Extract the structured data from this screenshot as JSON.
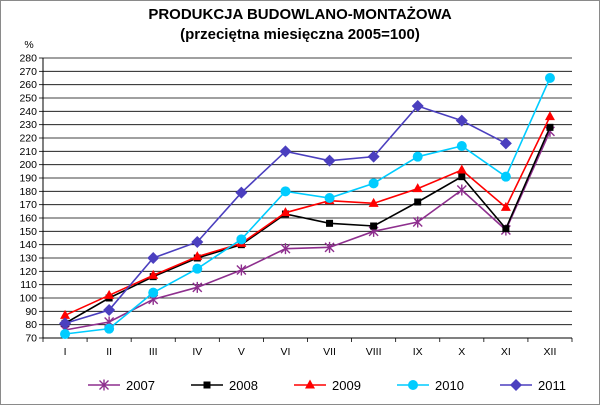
{
  "chart_data": {
    "type": "line",
    "title": "PRODUKCJA BUDOWLANO-MONTAŻOWA",
    "subtitle": "(przeciętna miesięczna 2005=100)",
    "ylabel": "%",
    "xlabel": "",
    "ylim": [
      70,
      280
    ],
    "ystep": 10,
    "grid": true,
    "legend": "bottom",
    "categories": [
      "I",
      "II",
      "III",
      "IV",
      "V",
      "VI",
      "VII",
      "VIII",
      "IX",
      "X",
      "XI",
      "XII"
    ],
    "series": [
      {
        "name": "2007",
        "color": "#8e2f8e",
        "marker": "star",
        "values": [
          76,
          82,
          99,
          108,
          121,
          137,
          138,
          150,
          157,
          181,
          151,
          225
        ]
      },
      {
        "name": "2008",
        "color": "#000000",
        "marker": "square",
        "values": [
          81,
          100,
          116,
          130,
          140,
          163,
          156,
          154,
          172,
          191,
          152,
          228
        ]
      },
      {
        "name": "2009",
        "color": "#ff0000",
        "marker": "triangle",
        "values": [
          87,
          102,
          117,
          131,
          141,
          164,
          173,
          171,
          182,
          196,
          168,
          236
        ]
      },
      {
        "name": "2010",
        "color": "#00ccff",
        "marker": "circle",
        "values": [
          73,
          77,
          104,
          122,
          144,
          180,
          175,
          186,
          206,
          214,
          191,
          265
        ]
      },
      {
        "name": "2011",
        "color": "#4b3fbf",
        "marker": "diamond",
        "values": [
          81,
          91,
          130,
          142,
          179,
          210,
          203,
          206,
          244,
          233,
          216,
          null
        ]
      }
    ]
  }
}
